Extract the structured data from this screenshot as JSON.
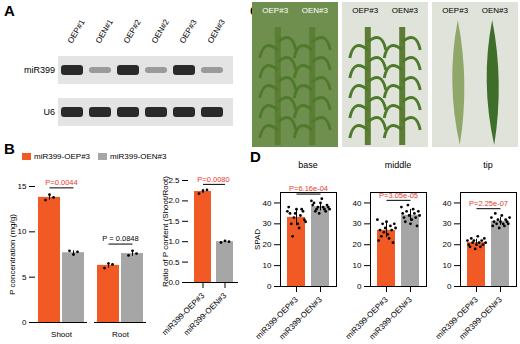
{
  "panel_labels": [
    "A",
    "B",
    "C",
    "D"
  ],
  "blot": {
    "lanes": [
      "OEP#1",
      "OEN#1",
      "OEP#2",
      "OEN#2",
      "OEP#3",
      "OEN#3"
    ],
    "rows": [
      "miR399",
      "U6"
    ]
  },
  "photos": {
    "labels": [
      [
        "OEP#3",
        "OEN#3"
      ],
      [
        "OEP#3",
        "OEN#3"
      ],
      [
        "OEP#3",
        "OEN#3"
      ]
    ]
  },
  "chart_data": [
    {
      "type": "bar",
      "ylabel": "P concentration (mg/g)",
      "categories": [
        "Shoot",
        "Root"
      ],
      "series": [
        {
          "name": "miR399-OEP#3",
          "color": "#f15a24",
          "values": [
            13.8,
            6.3
          ],
          "errors": [
            0.3,
            0.3
          ],
          "points": [
            [
              13.5,
              14.1,
              13.8
            ],
            [
              6.0,
              6.5,
              6.4
            ]
          ]
        },
        {
          "name": "miR399-OEN#3",
          "color": "#a6a6a6",
          "values": [
            7.7,
            7.6
          ],
          "errors": [
            0.2,
            0.3
          ],
          "points": [
            [
              7.9,
              7.5,
              7.8
            ],
            [
              7.4,
              7.9,
              7.6
            ]
          ]
        }
      ],
      "ylim": [
        0,
        15
      ],
      "yticks": [
        0,
        5,
        10,
        15
      ],
      "legend": "top",
      "annotations": [
        {
          "category": "Shoot",
          "text": "P=0.0044",
          "color": "#e8392a"
        },
        {
          "category": "Root",
          "text": "P = 0.0848",
          "color": "#000000"
        }
      ]
    },
    {
      "type": "bar",
      "ylabel": "Ratio of P content (Shoot/Root)",
      "categories": [
        "miR399-OEP#3",
        "miR399-OEN#3"
      ],
      "values": [
        2.23,
        1.0
      ],
      "errors": [
        0.05,
        0.02
      ],
      "points": [
        [
          2.18,
          2.25,
          2.27
        ],
        [
          0.98,
          1.02,
          1.0
        ]
      ],
      "colors": [
        "#f15a24",
        "#a6a6a6"
      ],
      "ylim": [
        0,
        2.5
      ],
      "yticks": [
        {
          "value": 0,
          "label": "0.0"
        },
        {
          "value": 0.5,
          "label": "0.5"
        },
        {
          "value": 1,
          "label": "1.0"
        },
        {
          "value": 1.5,
          "label": "1.5"
        },
        {
          "value": 2,
          "label": "2.0"
        },
        {
          "value": 2.5,
          "label": "2.5"
        }
      ],
      "annotations": [
        {
          "text": "P=0.0080",
          "color": "#e8392a"
        }
      ]
    },
    {
      "type": "bar",
      "title": "base",
      "ylabel": "SPAD",
      "categories": [
        "miR399-OEP#3",
        "miR399-OEN#3"
      ],
      "values": [
        33.1,
        38.2
      ],
      "errors": [
        4.0,
        2.0
      ],
      "points": [
        [
          36,
          38,
          35,
          30,
          24,
          33,
          35,
          37,
          30,
          28,
          34,
          37,
          36,
          32,
          31
        ],
        [
          41,
          39,
          40,
          36,
          37,
          38,
          35,
          40,
          42,
          38,
          37,
          36,
          39,
          38,
          37
        ]
      ],
      "colors": [
        "#f15a24",
        "#a6a6a6"
      ],
      "ylim": [
        0,
        45
      ],
      "yticks": [
        0,
        10,
        20,
        30,
        40
      ],
      "annotations": [
        {
          "text": "P=6.16e-04",
          "color": "#e8392a"
        }
      ]
    },
    {
      "type": "bar",
      "title": "middle",
      "categories": [
        "miR399-OEP#3",
        "miR399-OEN#3"
      ],
      "values": [
        26.9,
        34.1
      ],
      "errors": [
        3.5,
        2.8
      ],
      "points": [
        [
          32,
          22,
          27,
          24,
          30,
          26,
          28,
          31,
          25,
          23,
          29,
          27,
          21,
          30,
          28
        ],
        [
          38,
          35,
          33,
          31,
          36,
          39,
          34,
          30,
          32,
          37,
          35,
          33,
          29,
          36,
          34
        ]
      ],
      "colors": [
        "#f15a24",
        "#a6a6a6"
      ],
      "ylim": [
        0,
        45
      ],
      "yticks": [
        0,
        10,
        20,
        30,
        40
      ],
      "annotations": [
        {
          "text": "P=3.05e-05",
          "color": "#e8392a"
        }
      ]
    },
    {
      "type": "bar",
      "title": "tip",
      "categories": [
        "miR399-OEP#3",
        "miR399-OEN#3"
      ],
      "values": [
        21.0,
        31.2
      ],
      "errors": [
        1.6,
        1.9
      ],
      "points": [
        [
          22,
          20,
          19,
          23,
          21,
          22,
          18,
          20,
          24,
          21,
          19,
          22,
          20,
          23,
          21
        ],
        [
          33,
          29,
          31,
          35,
          30,
          32,
          28,
          31,
          34,
          30,
          29,
          32,
          31,
          30,
          33
        ]
      ],
      "colors": [
        "#f15a24",
        "#a6a6a6"
      ],
      "ylim": [
        0,
        45
      ],
      "yticks": [
        0,
        10,
        20,
        30,
        40
      ],
      "annotations": [
        {
          "text": "P=2.25e-07",
          "color": "#e8392a"
        }
      ]
    }
  ]
}
